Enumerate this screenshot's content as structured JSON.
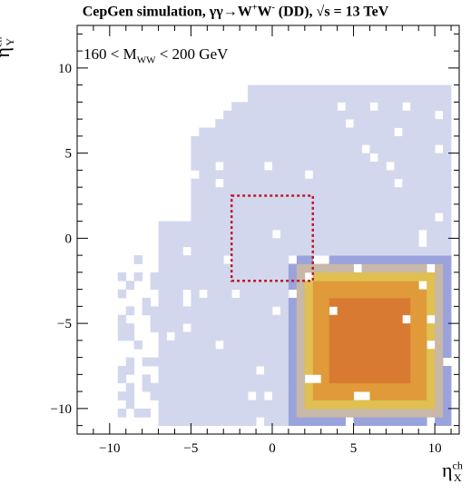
{
  "header": {
    "title_pre": "CepGen simulation, γγ→W",
    "title_sup1": "+",
    "title_mid": "W",
    "title_sup2": "-",
    "title_post": " (DD),  √s = 13 TeV"
  },
  "annotation": {
    "pre": "160 < M",
    "sub": "WW",
    "post": " < 200 GeV"
  },
  "chart_data": {
    "type": "heatmap",
    "xlabel_base": "η",
    "xlabel_sup": "ch",
    "xlabel_sub": "X",
    "ylabel_base": "η",
    "ylabel_sup": "ch",
    "ylabel_sub": "Y",
    "xlim": [
      -12,
      11.5
    ],
    "ylim": [
      -11.5,
      12.5
    ],
    "x_ticks": [
      -10,
      -5,
      0,
      5,
      10
    ],
    "y_ticks": [
      -10,
      -5,
      0,
      5,
      10
    ],
    "x_tick_labels": [
      "−10",
      "−5",
      "0",
      "5",
      "10"
    ],
    "y_tick_labels": [
      "−10",
      "−5",
      "0",
      "5",
      "10"
    ],
    "bin_width": 0.5,
    "core_center": [
      6.0,
      -6.0
    ],
    "colors": {
      "low": "#d2d7ee",
      "mid_low": "#9aa3dc",
      "mid": "#c8b8a8",
      "mid_high": "#e0c050",
      "high": "#e09a3a",
      "peak": "#d97a32",
      "box": "#c0182a"
    },
    "acceptance_box": {
      "x": [
        -2.5,
        2.5
      ],
      "y": [
        -2.5,
        2.5
      ]
    }
  }
}
